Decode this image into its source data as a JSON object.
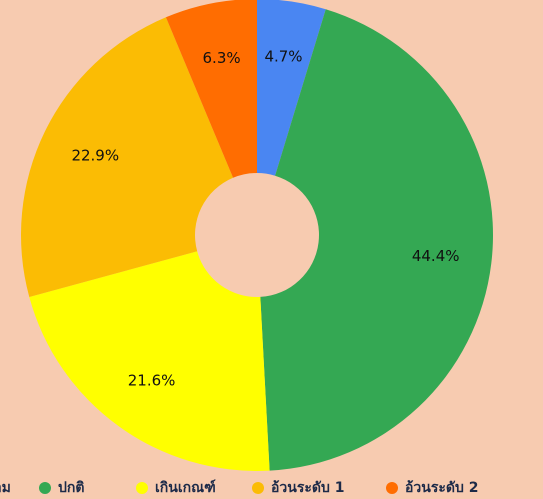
{
  "chart_data": {
    "type": "pie",
    "categories": [
      "ผอม",
      "ปกติ",
      "เกินเกณฑ์",
      "อ้วนระดับ 1",
      "อ้วนระดับ 2"
    ],
    "values": [
      4.7,
      44.4,
      21.6,
      22.9,
      6.3
    ],
    "value_labels": [
      "4.7%",
      "44.4%",
      "21.6%",
      "22.9%",
      "6.3%"
    ],
    "colors": [
      "#4a86f2",
      "#34a853",
      "#ffff00",
      "#fbbc04",
      "#ff6d01"
    ],
    "legend": "bottom"
  }
}
